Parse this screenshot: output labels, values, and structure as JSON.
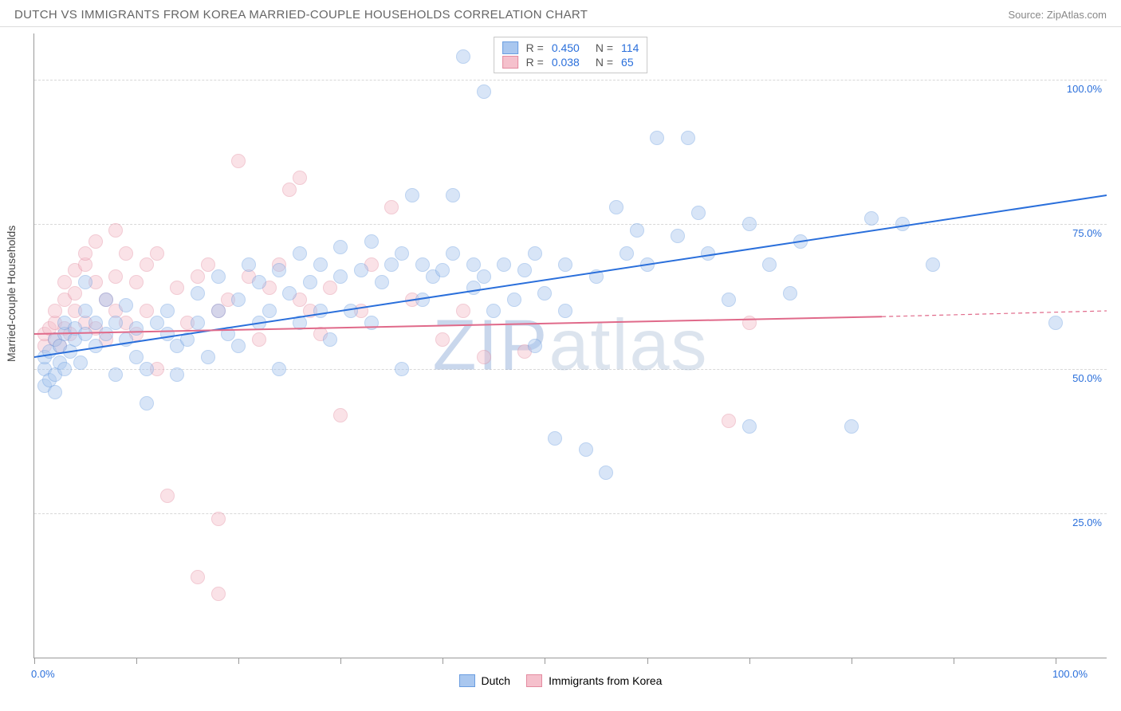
{
  "title": "DUTCH VS IMMIGRANTS FROM KOREA MARRIED-COUPLE HOUSEHOLDS CORRELATION CHART",
  "source_label": "Source: ZipAtlas.com",
  "y_axis_label": "Married-couple Households",
  "watermark": {
    "prefix": "ZIP",
    "suffix": "atlas"
  },
  "chart": {
    "type": "scatter",
    "background_color": "#ffffff",
    "grid_color": "#d8d8d8",
    "border_color": "#999999",
    "xlim": [
      0,
      105
    ],
    "ylim": [
      0,
      108
    ],
    "x_ticks": [
      0,
      10,
      20,
      30,
      40,
      50,
      60,
      70,
      80,
      90,
      100
    ],
    "x_tick_labels": {
      "0": "0.0%",
      "100": "100.0%"
    },
    "y_ticks": [
      25,
      50,
      75,
      100
    ],
    "y_tick_labels": {
      "25": "25.0%",
      "50": "50.0%",
      "75": "75.0%",
      "100": "100.0%"
    },
    "marker_radius": 9,
    "marker_opacity": 0.45,
    "line_width": 2,
    "series": [
      {
        "id": "dutch",
        "label": "Dutch",
        "R_label": "R =",
        "R": "0.450",
        "N_label": "N =",
        "N": "114",
        "fill_color": "#a9c7ef",
        "stroke_color": "#6a9de0",
        "line_color": "#2a6fdb",
        "trend": {
          "x1": 0,
          "y1": 52,
          "x2": 105,
          "y2": 80,
          "dash_from_x": 105
        },
        "points": [
          [
            1,
            47
          ],
          [
            1,
            50
          ],
          [
            1,
            52
          ],
          [
            1.5,
            48
          ],
          [
            1.5,
            53
          ],
          [
            2,
            49
          ],
          [
            2,
            46
          ],
          [
            2,
            55
          ],
          [
            2.5,
            51
          ],
          [
            2.5,
            54
          ],
          [
            3,
            50
          ],
          [
            3,
            56
          ],
          [
            3,
            58
          ],
          [
            3.5,
            53
          ],
          [
            4,
            57
          ],
          [
            4,
            55
          ],
          [
            4.5,
            51
          ],
          [
            5,
            56
          ],
          [
            5,
            60
          ],
          [
            5,
            65
          ],
          [
            6,
            58
          ],
          [
            6,
            54
          ],
          [
            7,
            56
          ],
          [
            7,
            62
          ],
          [
            8,
            58
          ],
          [
            8,
            49
          ],
          [
            9,
            55
          ],
          [
            9,
            61
          ],
          [
            10,
            57
          ],
          [
            10,
            52
          ],
          [
            11,
            50
          ],
          [
            11,
            44
          ],
          [
            12,
            58
          ],
          [
            13,
            56
          ],
          [
            13,
            60
          ],
          [
            14,
            54
          ],
          [
            14,
            49
          ],
          [
            15,
            55
          ],
          [
            16,
            63
          ],
          [
            16,
            58
          ],
          [
            17,
            52
          ],
          [
            18,
            60
          ],
          [
            18,
            66
          ],
          [
            19,
            56
          ],
          [
            20,
            62
          ],
          [
            20,
            54
          ],
          [
            21,
            68
          ],
          [
            22,
            58
          ],
          [
            22,
            65
          ],
          [
            23,
            60
          ],
          [
            24,
            50
          ],
          [
            24,
            67
          ],
          [
            25,
            63
          ],
          [
            26,
            58
          ],
          [
            26,
            70
          ],
          [
            27,
            65
          ],
          [
            28,
            60
          ],
          [
            28,
            68
          ],
          [
            29,
            55
          ],
          [
            30,
            66
          ],
          [
            30,
            71
          ],
          [
            31,
            60
          ],
          [
            32,
            67
          ],
          [
            33,
            58
          ],
          [
            33,
            72
          ],
          [
            34,
            65
          ],
          [
            35,
            68
          ],
          [
            36,
            50
          ],
          [
            36,
            70
          ],
          [
            37,
            80
          ],
          [
            38,
            62
          ],
          [
            38,
            68
          ],
          [
            39,
            66
          ],
          [
            40,
            67
          ],
          [
            41,
            70
          ],
          [
            41,
            80
          ],
          [
            42,
            104
          ],
          [
            43,
            64
          ],
          [
            43,
            68
          ],
          [
            44,
            66
          ],
          [
            45,
            60
          ],
          [
            46,
            68
          ],
          [
            47,
            62
          ],
          [
            48,
            67
          ],
          [
            49,
            54
          ],
          [
            49,
            70
          ],
          [
            50,
            63
          ],
          [
            51,
            38
          ],
          [
            52,
            68
          ],
          [
            52,
            60
          ],
          [
            54,
            36
          ],
          [
            55,
            66
          ],
          [
            56,
            32
          ],
          [
            57,
            78
          ],
          [
            58,
            70
          ],
          [
            59,
            74
          ],
          [
            60,
            68
          ],
          [
            61,
            90
          ],
          [
            63,
            73
          ],
          [
            64,
            90
          ],
          [
            65,
            77
          ],
          [
            66,
            70
          ],
          [
            68,
            62
          ],
          [
            70,
            75
          ],
          [
            70,
            40
          ],
          [
            72,
            68
          ],
          [
            74,
            63
          ],
          [
            75,
            72
          ],
          [
            80,
            40
          ],
          [
            82,
            76
          ],
          [
            85,
            75
          ],
          [
            88,
            68
          ],
          [
            100,
            58
          ],
          [
            44,
            98
          ]
        ]
      },
      {
        "id": "korea",
        "label": "Immigrants from Korea",
        "R_label": "R =",
        "R": "0.038",
        "N_label": "N =",
        "N": "65",
        "fill_color": "#f5c0cc",
        "stroke_color": "#e38ba0",
        "line_color": "#e06a8a",
        "trend": {
          "x1": 0,
          "y1": 56,
          "x2": 83,
          "y2": 59,
          "dash_from_x": 83,
          "dash_x2": 105,
          "dash_y2": 60
        },
        "points": [
          [
            1,
            54
          ],
          [
            1,
            56
          ],
          [
            1.5,
            57
          ],
          [
            2,
            55
          ],
          [
            2,
            58
          ],
          [
            2,
            60
          ],
          [
            2.5,
            54
          ],
          [
            3,
            57
          ],
          [
            3,
            62
          ],
          [
            3,
            65
          ],
          [
            3.5,
            56
          ],
          [
            4,
            60
          ],
          [
            4,
            63
          ],
          [
            4,
            67
          ],
          [
            5,
            58
          ],
          [
            5,
            68
          ],
          [
            5,
            70
          ],
          [
            6,
            57
          ],
          [
            6,
            65
          ],
          [
            6,
            72
          ],
          [
            7,
            62
          ],
          [
            7,
            55
          ],
          [
            8,
            66
          ],
          [
            8,
            60
          ],
          [
            8,
            74
          ],
          [
            9,
            58
          ],
          [
            9,
            70
          ],
          [
            10,
            65
          ],
          [
            10,
            56
          ],
          [
            11,
            68
          ],
          [
            11,
            60
          ],
          [
            12,
            70
          ],
          [
            12,
            50
          ],
          [
            13,
            28
          ],
          [
            14,
            64
          ],
          [
            15,
            58
          ],
          [
            16,
            66
          ],
          [
            16,
            14
          ],
          [
            17,
            68
          ],
          [
            18,
            24
          ],
          [
            18,
            60
          ],
          [
            18,
            11
          ],
          [
            19,
            62
          ],
          [
            20,
            86
          ],
          [
            21,
            66
          ],
          [
            22,
            55
          ],
          [
            23,
            64
          ],
          [
            24,
            68
          ],
          [
            25,
            81
          ],
          [
            26,
            62
          ],
          [
            26,
            83
          ],
          [
            27,
            60
          ],
          [
            28,
            56
          ],
          [
            29,
            64
          ],
          [
            30,
            42
          ],
          [
            32,
            60
          ],
          [
            33,
            68
          ],
          [
            35,
            78
          ],
          [
            37,
            62
          ],
          [
            40,
            55
          ],
          [
            42,
            60
          ],
          [
            44,
            52
          ],
          [
            48,
            53
          ],
          [
            68,
            41
          ],
          [
            70,
            58
          ]
        ]
      }
    ],
    "legend_bottom": [
      {
        "series": "dutch"
      },
      {
        "series": "korea"
      }
    ]
  },
  "colors": {
    "tick_text": "#2a6fdb",
    "title_text": "#666666",
    "source_text": "#888888",
    "axis_label_text": "#444444"
  }
}
